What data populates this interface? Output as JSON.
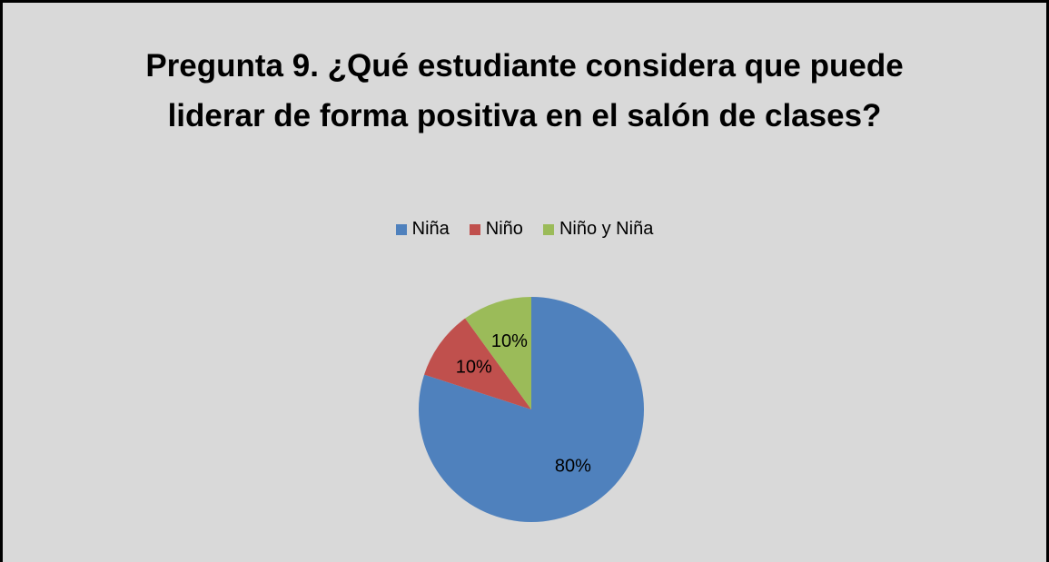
{
  "chart_data": {
    "type": "pie",
    "title": "Pregunta 9. ¿Qué estudiante considera que puede liderar de forma positiva en el salón de clases?",
    "categories": [
      "Niña",
      "Niño",
      "Niño y Niña"
    ],
    "values": [
      80,
      10,
      10
    ],
    "value_labels": [
      "80%",
      "10%",
      "10%"
    ],
    "colors": [
      "#4f81bd",
      "#c0504d",
      "#9bbb59"
    ],
    "legend": "top"
  }
}
